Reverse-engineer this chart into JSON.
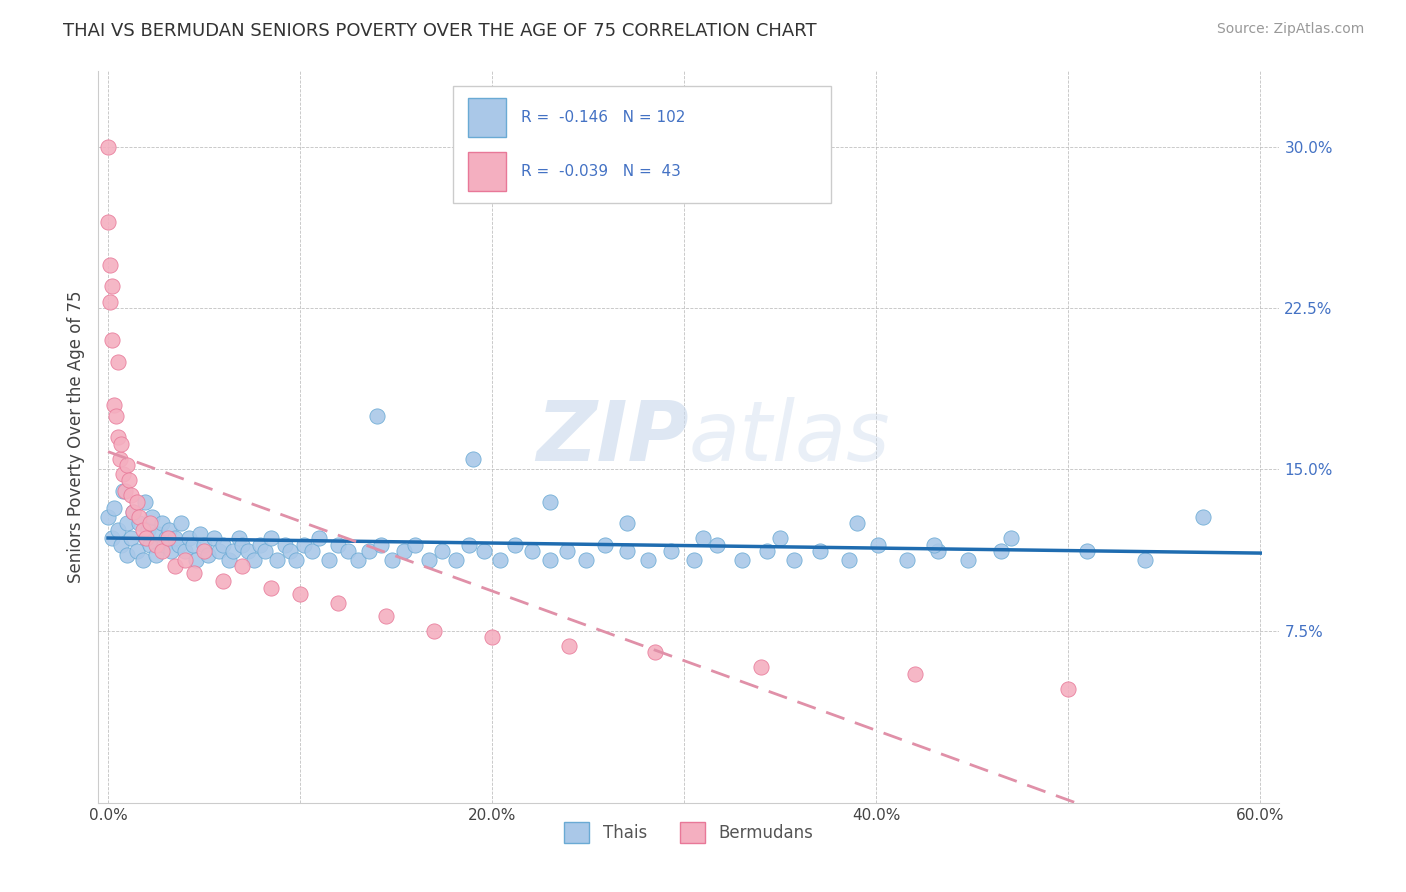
{
  "title": "THAI VS BERMUDAN SENIORS POVERTY OVER THE AGE OF 75 CORRELATION CHART",
  "source": "Source: ZipAtlas.com",
  "ylabel": "Seniors Poverty Over the Age of 75",
  "xlim": [
    -0.005,
    0.61
  ],
  "ylim": [
    -0.005,
    0.335
  ],
  "xticks": [
    0.0,
    0.1,
    0.2,
    0.3,
    0.4,
    0.5,
    0.6
  ],
  "xticklabels": [
    "0.0%",
    "",
    "20.0%",
    "",
    "40.0%",
    "",
    "60.0%"
  ],
  "yticks": [
    0.075,
    0.15,
    0.225,
    0.3
  ],
  "yticklabels": [
    "7.5%",
    "15.0%",
    "22.5%",
    "30.0%"
  ],
  "thai_color": "#aac8e8",
  "thai_edge_color": "#6aaad4",
  "bermudan_color": "#f4afc0",
  "bermudan_edge_color": "#e87898",
  "thai_line_color": "#1f6cb0",
  "bermudan_line_color": "#e090a8",
  "legend_thai_r": "-0.146",
  "legend_thai_n": "102",
  "legend_bermudan_r": "-0.039",
  "legend_bermudan_n": "43",
  "legend_label_thai": "Thais",
  "legend_label_bermudan": "Bermudans",
  "background_color": "#ffffff",
  "tick_color": "#4472c4",
  "title_color": "#333333",
  "source_color": "#999999",
  "thai_x": [
    0.0,
    0.002,
    0.003,
    0.005,
    0.007,
    0.008,
    0.01,
    0.01,
    0.012,
    0.013,
    0.015,
    0.016,
    0.018,
    0.019,
    0.02,
    0.021,
    0.022,
    0.023,
    0.025,
    0.026,
    0.028,
    0.029,
    0.03,
    0.032,
    0.033,
    0.035,
    0.037,
    0.038,
    0.04,
    0.042,
    0.044,
    0.046,
    0.048,
    0.05,
    0.052,
    0.055,
    0.058,
    0.06,
    0.063,
    0.065,
    0.068,
    0.07,
    0.073,
    0.076,
    0.079,
    0.082,
    0.085,
    0.088,
    0.092,
    0.095,
    0.098,
    0.102,
    0.106,
    0.11,
    0.115,
    0.12,
    0.125,
    0.13,
    0.136,
    0.142,
    0.148,
    0.154,
    0.16,
    0.167,
    0.174,
    0.181,
    0.188,
    0.196,
    0.204,
    0.212,
    0.221,
    0.23,
    0.239,
    0.249,
    0.259,
    0.27,
    0.281,
    0.293,
    0.305,
    0.317,
    0.33,
    0.343,
    0.357,
    0.371,
    0.386,
    0.401,
    0.416,
    0.432,
    0.448,
    0.465,
    0.14,
    0.19,
    0.23,
    0.27,
    0.31,
    0.35,
    0.39,
    0.43,
    0.47,
    0.51,
    0.54,
    0.57
  ],
  "thai_y": [
    0.128,
    0.118,
    0.132,
    0.122,
    0.115,
    0.14,
    0.125,
    0.11,
    0.118,
    0.13,
    0.112,
    0.125,
    0.108,
    0.135,
    0.118,
    0.122,
    0.115,
    0.128,
    0.11,
    0.12,
    0.125,
    0.115,
    0.118,
    0.122,
    0.112,
    0.118,
    0.115,
    0.125,
    0.112,
    0.118,
    0.115,
    0.108,
    0.12,
    0.115,
    0.11,
    0.118,
    0.112,
    0.115,
    0.108,
    0.112,
    0.118,
    0.115,
    0.112,
    0.108,
    0.115,
    0.112,
    0.118,
    0.108,
    0.115,
    0.112,
    0.108,
    0.115,
    0.112,
    0.118,
    0.108,
    0.115,
    0.112,
    0.108,
    0.112,
    0.115,
    0.108,
    0.112,
    0.115,
    0.108,
    0.112,
    0.108,
    0.115,
    0.112,
    0.108,
    0.115,
    0.112,
    0.108,
    0.112,
    0.108,
    0.115,
    0.112,
    0.108,
    0.112,
    0.108,
    0.115,
    0.108,
    0.112,
    0.108,
    0.112,
    0.108,
    0.115,
    0.108,
    0.112,
    0.108,
    0.112,
    0.175,
    0.155,
    0.135,
    0.125,
    0.118,
    0.118,
    0.125,
    0.115,
    0.118,
    0.112,
    0.108,
    0.128
  ],
  "bermudan_x": [
    0.0,
    0.0,
    0.001,
    0.001,
    0.002,
    0.002,
    0.003,
    0.004,
    0.005,
    0.005,
    0.006,
    0.007,
    0.008,
    0.009,
    0.01,
    0.011,
    0.012,
    0.013,
    0.015,
    0.016,
    0.018,
    0.02,
    0.022,
    0.025,
    0.028,
    0.031,
    0.035,
    0.04,
    0.045,
    0.05,
    0.06,
    0.07,
    0.085,
    0.1,
    0.12,
    0.145,
    0.17,
    0.2,
    0.24,
    0.285,
    0.34,
    0.42,
    0.5
  ],
  "bermudan_y": [
    0.3,
    0.265,
    0.245,
    0.228,
    0.21,
    0.235,
    0.18,
    0.175,
    0.165,
    0.2,
    0.155,
    0.162,
    0.148,
    0.14,
    0.152,
    0.145,
    0.138,
    0.13,
    0.135,
    0.128,
    0.122,
    0.118,
    0.125,
    0.115,
    0.112,
    0.118,
    0.105,
    0.108,
    0.102,
    0.112,
    0.098,
    0.105,
    0.095,
    0.092,
    0.088,
    0.082,
    0.075,
    0.072,
    0.068,
    0.065,
    0.058,
    0.055,
    0.048
  ]
}
